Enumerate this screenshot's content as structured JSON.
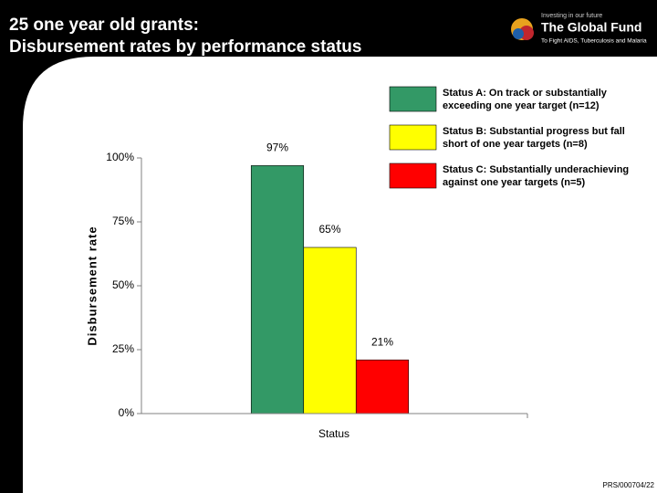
{
  "header": {
    "title_lines": [
      "25 one year old grants:",
      "Disbursement rates by performance status"
    ],
    "logo_tagline": "Investing in our future",
    "logo_name": "The Global Fund",
    "logo_subtitle": "To Fight AIDS, Tuberculosis and Malaria"
  },
  "footer": "PRS/000704/22",
  "chart_data": {
    "type": "bar",
    "y_label": "Disbursement rate",
    "x_label": "Status",
    "categories": [
      null
    ],
    "series": [
      {
        "name": "Status A: On track or substantially exceeding one year target (n=12)",
        "color": "#339966",
        "values": [
          97
        ],
        "value_labels": [
          "97%"
        ]
      },
      {
        "name": "Status B: Substantial progress but fall short of one year targets (n=8)",
        "color": "#ffff00",
        "values": [
          65
        ],
        "value_labels": [
          "65%"
        ]
      },
      {
        "name": "Status C: Substantially underachieving against one year targets (n=5)",
        "color": "#ff0000",
        "values": [
          21
        ],
        "value_labels": [
          "21%"
        ]
      }
    ],
    "ylim": [
      0,
      100
    ],
    "yticks": [
      {
        "value": 0,
        "label": "0%"
      },
      {
        "value": 25,
        "label": "25%"
      },
      {
        "value": 50,
        "label": "50%"
      },
      {
        "value": 75,
        "label": "75%"
      },
      {
        "value": 100,
        "label": "100%"
      }
    ]
  }
}
